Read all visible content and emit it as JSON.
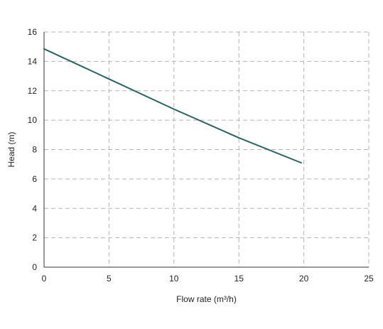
{
  "chart_data": {
    "type": "line",
    "title": "",
    "xlabel": "Flow rate (m³/h)",
    "ylabel": "Head (m)",
    "xlim": [
      0,
      25
    ],
    "ylim": [
      0,
      16
    ],
    "x_ticks": [
      "0",
      "5",
      "10",
      "15",
      "20",
      "25"
    ],
    "y_ticks": [
      "0",
      "2",
      "4",
      "6",
      "8",
      "10",
      "12",
      "14",
      "16"
    ],
    "grid": true,
    "grid_style": "dashed",
    "legend": "none",
    "series": [
      {
        "x": [
          0,
          5,
          10,
          15,
          19.8
        ],
        "y": [
          14.85,
          12.8,
          10.75,
          8.8,
          7.1
        ],
        "color": "#2b6363"
      }
    ]
  },
  "colors": {
    "line": "#2b6363",
    "grid": "#b5b5b5",
    "axis": "#333333",
    "text": "#222222"
  }
}
